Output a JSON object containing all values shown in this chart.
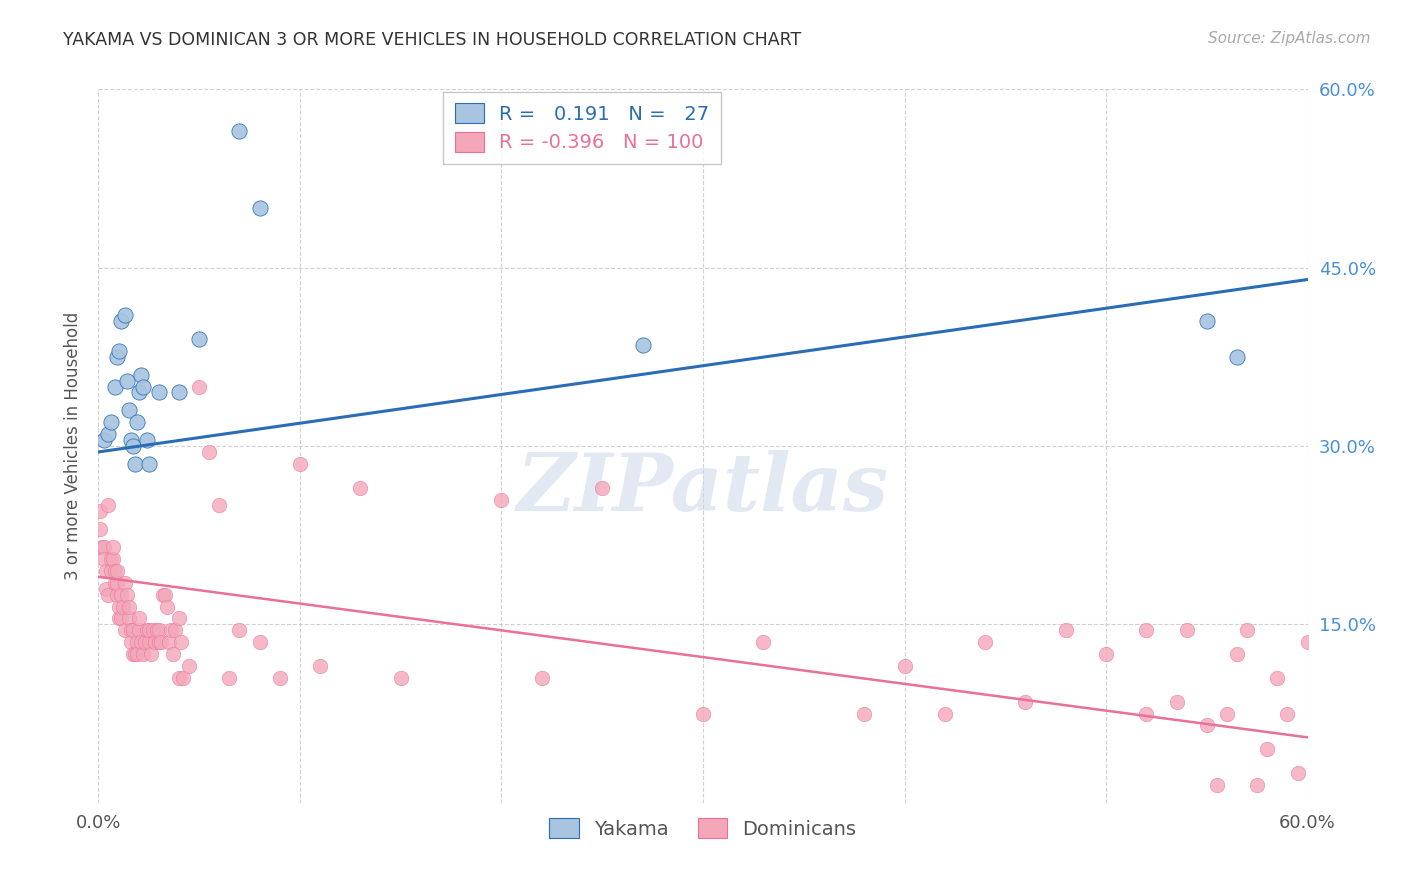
{
  "title": "YAKAMA VS DOMINICAN 3 OR MORE VEHICLES IN HOUSEHOLD CORRELATION CHART",
  "source": "Source: ZipAtlas.com",
  "ylabel": "3 or more Vehicles in Household",
  "xlim": [
    0.0,
    0.6
  ],
  "ylim": [
    0.0,
    0.6
  ],
  "ytick_positions": [
    0.0,
    0.15,
    0.3,
    0.45,
    0.6
  ],
  "ytick_labels_right": [
    "",
    "15.0%",
    "30.0%",
    "45.0%",
    "60.0%"
  ],
  "xtick_positions": [
    0.0,
    0.1,
    0.2,
    0.3,
    0.4,
    0.5,
    0.6
  ],
  "xtick_labels": [
    "0.0%",
    "",
    "",
    "",
    "",
    "",
    "60.0%"
  ],
  "legend_yakama_R": "0.191",
  "legend_yakama_N": "27",
  "legend_dominican_R": "-0.396",
  "legend_dominican_N": "100",
  "yakama_color": "#a8c4e0",
  "dominican_color": "#f4a7b9",
  "trendline_yakama_color": "#2a6db5",
  "trendline_dominican_color": "#e8709a",
  "watermark_text": "ZIPatlas",
  "background_color": "#ffffff",
  "grid_color": "#cccccc",
  "yakama_x": [
    0.003,
    0.005,
    0.006,
    0.008,
    0.009,
    0.01,
    0.011,
    0.013,
    0.014,
    0.015,
    0.016,
    0.017,
    0.018,
    0.019,
    0.02,
    0.021,
    0.022,
    0.024,
    0.025,
    0.03,
    0.04,
    0.05,
    0.07,
    0.08,
    0.27,
    0.55,
    0.565
  ],
  "yakama_y": [
    0.305,
    0.31,
    0.32,
    0.35,
    0.375,
    0.38,
    0.405,
    0.41,
    0.355,
    0.33,
    0.305,
    0.3,
    0.285,
    0.32,
    0.345,
    0.36,
    0.35,
    0.305,
    0.285,
    0.345,
    0.345,
    0.39,
    0.565,
    0.5,
    0.385,
    0.405,
    0.375
  ],
  "dominican_x": [
    0.001,
    0.001,
    0.002,
    0.003,
    0.003,
    0.004,
    0.004,
    0.005,
    0.005,
    0.006,
    0.006,
    0.007,
    0.007,
    0.008,
    0.008,
    0.009,
    0.009,
    0.009,
    0.01,
    0.01,
    0.011,
    0.011,
    0.012,
    0.013,
    0.013,
    0.014,
    0.015,
    0.015,
    0.016,
    0.016,
    0.017,
    0.017,
    0.018,
    0.019,
    0.019,
    0.02,
    0.02,
    0.021,
    0.022,
    0.023,
    0.024,
    0.025,
    0.025,
    0.026,
    0.027,
    0.028,
    0.029,
    0.03,
    0.03,
    0.031,
    0.032,
    0.033,
    0.034,
    0.035,
    0.036,
    0.037,
    0.038,
    0.04,
    0.04,
    0.041,
    0.042,
    0.045,
    0.05,
    0.055,
    0.06,
    0.065,
    0.07,
    0.08,
    0.09,
    0.1,
    0.11,
    0.13,
    0.15,
    0.2,
    0.22,
    0.25,
    0.3,
    0.33,
    0.38,
    0.4,
    0.42,
    0.44,
    0.46,
    0.48,
    0.5,
    0.52,
    0.52,
    0.535,
    0.54,
    0.55,
    0.555,
    0.56,
    0.565,
    0.57,
    0.575,
    0.58,
    0.585,
    0.59,
    0.595,
    0.6
  ],
  "dominican_y": [
    0.245,
    0.23,
    0.215,
    0.215,
    0.205,
    0.195,
    0.18,
    0.175,
    0.25,
    0.205,
    0.195,
    0.205,
    0.215,
    0.185,
    0.195,
    0.175,
    0.185,
    0.195,
    0.155,
    0.165,
    0.175,
    0.155,
    0.165,
    0.145,
    0.185,
    0.175,
    0.155,
    0.165,
    0.145,
    0.135,
    0.145,
    0.125,
    0.125,
    0.135,
    0.125,
    0.145,
    0.155,
    0.135,
    0.125,
    0.135,
    0.145,
    0.135,
    0.145,
    0.125,
    0.145,
    0.135,
    0.145,
    0.135,
    0.145,
    0.135,
    0.175,
    0.175,
    0.165,
    0.135,
    0.145,
    0.125,
    0.145,
    0.155,
    0.105,
    0.135,
    0.105,
    0.115,
    0.35,
    0.295,
    0.25,
    0.105,
    0.145,
    0.135,
    0.105,
    0.285,
    0.115,
    0.265,
    0.105,
    0.255,
    0.105,
    0.265,
    0.075,
    0.135,
    0.075,
    0.115,
    0.075,
    0.135,
    0.085,
    0.145,
    0.125,
    0.145,
    0.075,
    0.085,
    0.145,
    0.065,
    0.015,
    0.075,
    0.125,
    0.145,
    0.015,
    0.045,
    0.105,
    0.075,
    0.025,
    0.135
  ]
}
